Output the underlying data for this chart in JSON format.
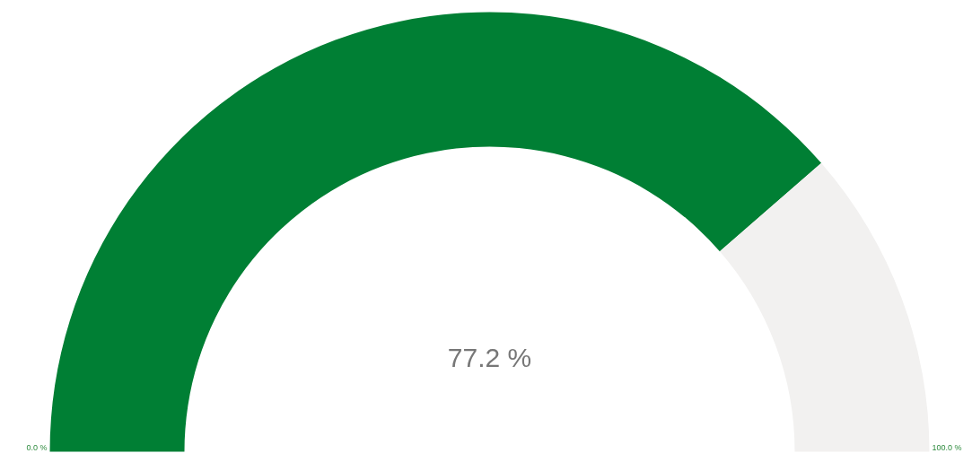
{
  "chart_data": {
    "type": "donut",
    "categories": [
      null,
      null
    ],
    "values": [
      77.2,
      22.8
    ],
    "colors": [
      "#007f34",
      "#f2f1f0"
    ],
    "annotations": [
      "77.2 %",
      "0.0 %",
      "100.0 %"
    ]
  }
}
